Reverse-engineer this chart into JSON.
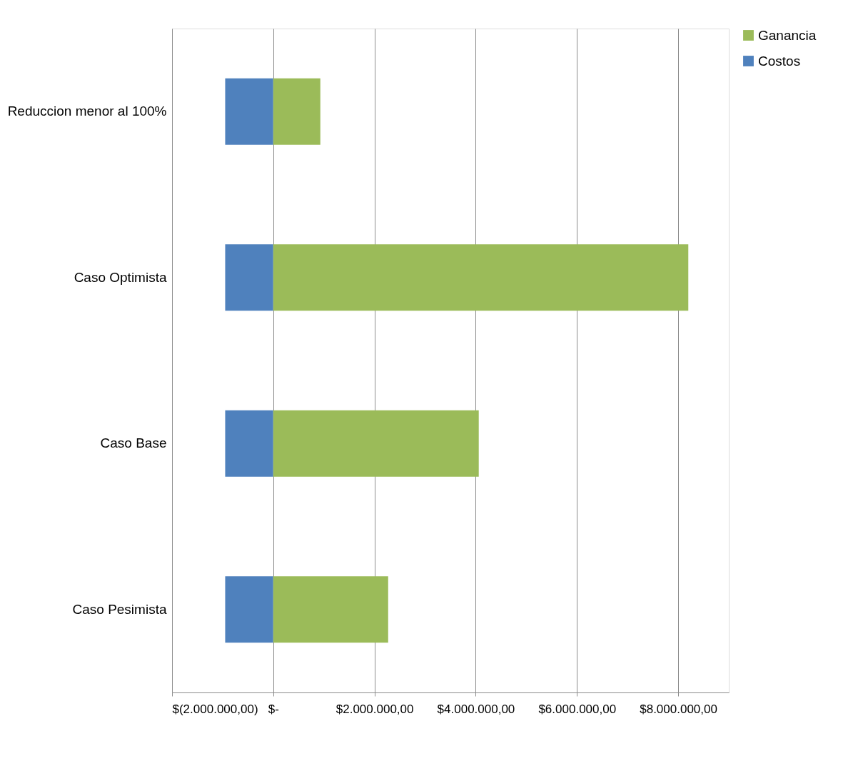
{
  "chart_data": {
    "type": "bar",
    "orientation": "horizontal",
    "stacked": true,
    "categories": [
      "Reduccion menor al 100%",
      "Caso Optimista",
      "Caso Base",
      "Caso Pesimista"
    ],
    "series": [
      {
        "name": "Costos",
        "color": "#4f81bd",
        "values": [
          -950000,
          -950000,
          -950000,
          -950000
        ]
      },
      {
        "name": "Ganancia",
        "color": "#9bbb59",
        "values": [
          930000,
          8200000,
          4060000,
          2270000
        ]
      }
    ],
    "xlim": [
      -2000000,
      9000000
    ],
    "xticks": [
      {
        "value": -2000000,
        "label": "$(2.000.000,00)"
      },
      {
        "value": 0,
        "label": "$-"
      },
      {
        "value": 2000000,
        "label": "$2.000.000,00"
      },
      {
        "value": 4000000,
        "label": "$4.000.000,00"
      },
      {
        "value": 6000000,
        "label": "$6.000.000,00"
      },
      {
        "value": 8000000,
        "label": "$8.000.000,00"
      }
    ],
    "grid": "x",
    "legend": "right"
  }
}
